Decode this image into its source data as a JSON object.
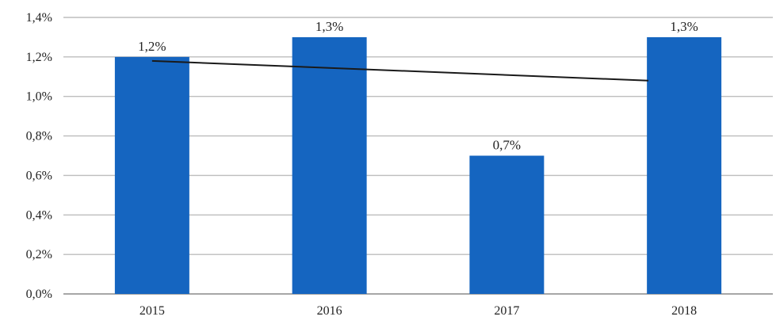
{
  "chart_data": {
    "type": "bar",
    "categories": [
      "2015",
      "2016",
      "2017",
      "2018"
    ],
    "values": [
      1.2,
      1.3,
      0.7,
      1.3
    ],
    "data_labels": [
      "1,2%",
      "1,3%",
      "0,7%",
      "1,3%"
    ],
    "ylim": [
      0,
      1.4
    ],
    "y_ticks": [
      0,
      0.2,
      0.4,
      0.6,
      0.8,
      1.0,
      1.2,
      1.4
    ],
    "y_tick_labels": [
      "0,0%",
      "0,2%",
      "0,4%",
      "0,6%",
      "0,8%",
      "1,0%",
      "1,2%",
      "1,4%"
    ],
    "grid": true,
    "legend": "none",
    "bar_color": "#1565c0",
    "trendline": {
      "type": "linear",
      "color": "#1a1a1a",
      "start_value": 1.18,
      "end_value": 1.08
    }
  }
}
